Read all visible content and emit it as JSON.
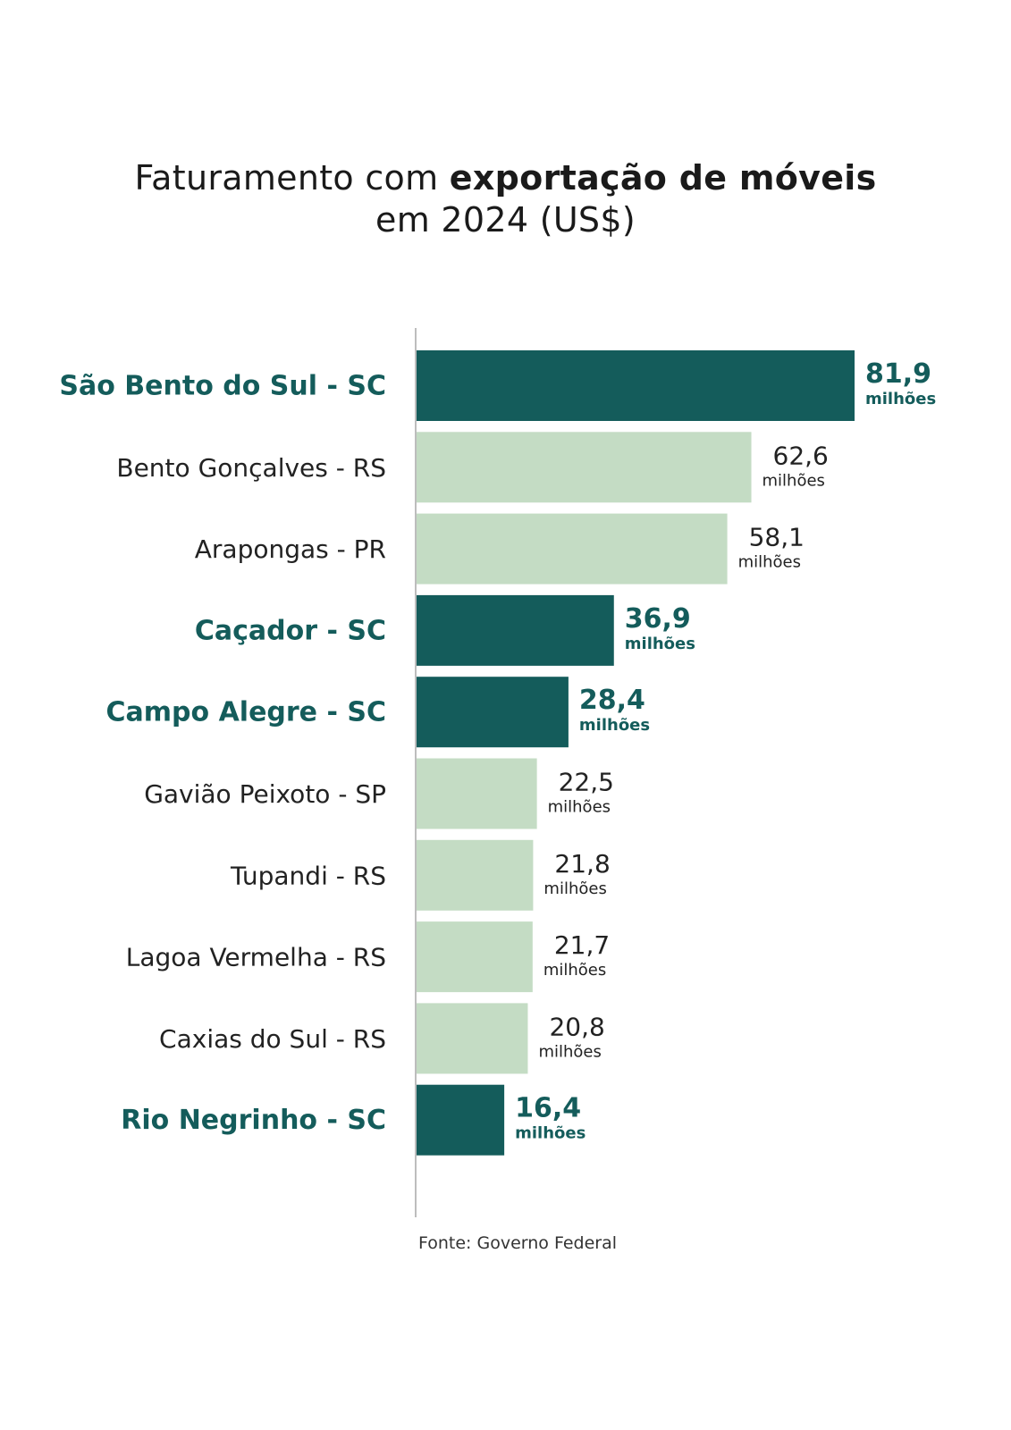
{
  "title": {
    "prefix": "Faturamento com ",
    "bold": "exportação de móveis",
    "line2": "em 2024 (US$)"
  },
  "source": "Fonte: Governo Federal",
  "colors": {
    "highlight": "#145c5b",
    "normal": "#c4dcc4",
    "axis": "#bdbdbd"
  },
  "chart_data": {
    "type": "bar",
    "orientation": "horizontal",
    "title": "Faturamento com exportação de móveis em 2024 (US$)",
    "categories": [
      "São Bento do Sul - SC",
      "Bento Gonçalves - RS",
      "Arapongas - PR",
      "Caçador - SC",
      "Campo Alegre - SC",
      "Gavião Peixoto - SP",
      "Tupandi - RS",
      "Lagoa Vermelha - RS",
      "Caxias do Sul - RS",
      "Rio Negrinho - SC"
    ],
    "values": [
      81.9,
      62.6,
      58.1,
      36.9,
      28.4,
      22.5,
      21.8,
      21.7,
      20.8,
      16.4
    ],
    "value_labels": [
      "81,9",
      "62,6",
      "58,1",
      "36,9",
      "28,4",
      "22,5",
      "21,8",
      "21,7",
      "20,8",
      "16,4"
    ],
    "unit_label": "milhões",
    "highlighted": [
      true,
      false,
      false,
      true,
      true,
      false,
      false,
      false,
      false,
      true
    ],
    "xlim": [
      0,
      81.9
    ],
    "grid": false,
    "legend": "none"
  }
}
